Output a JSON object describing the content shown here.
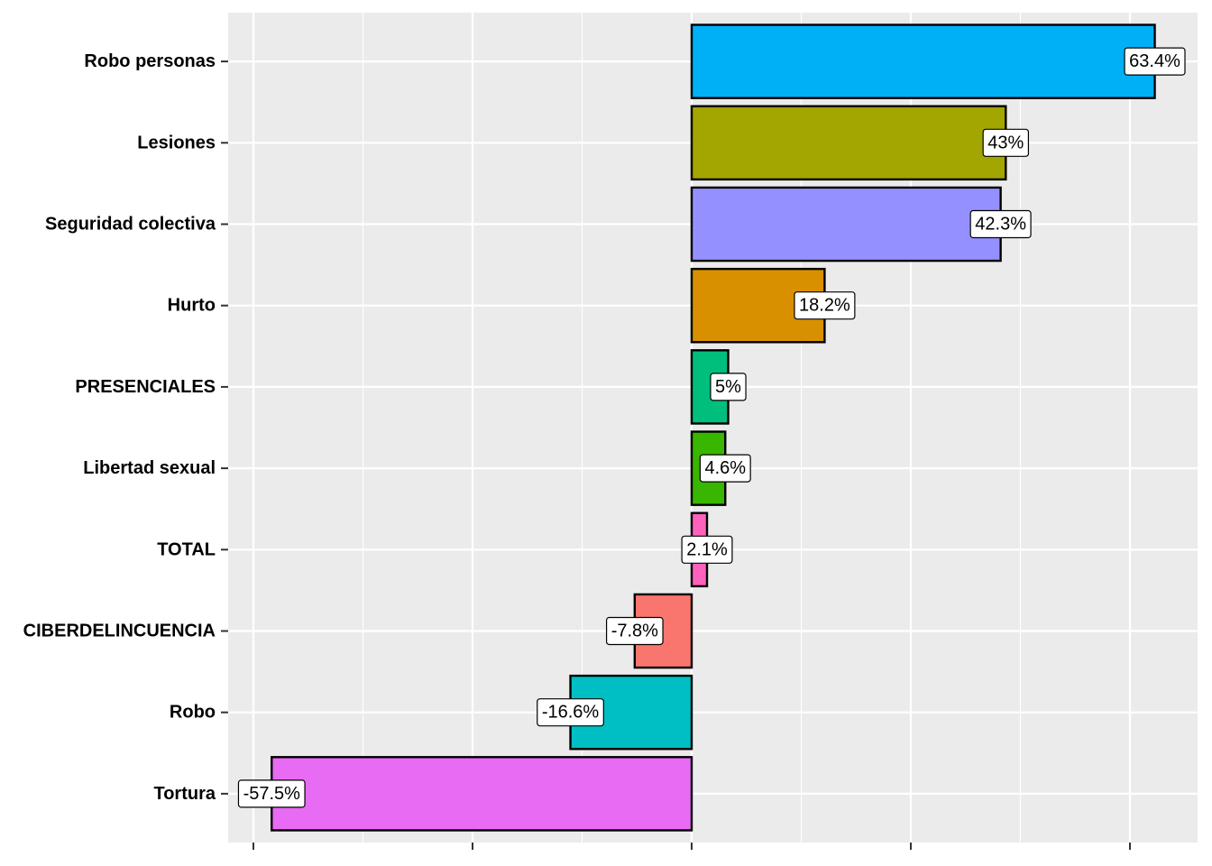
{
  "chart_data": {
    "type": "bar",
    "orientation": "horizontal",
    "title": "",
    "xlabel": "",
    "ylabel": "",
    "xlim": [
      -60,
      65
    ],
    "x_major_breaks": [
      -60,
      -30,
      0,
      30,
      60
    ],
    "x_tick_labels_visible": false,
    "grid": true,
    "legend": "none",
    "categories": [
      "Robo personas",
      "Lesiones",
      "Seguridad colectiva",
      "Hurto",
      "PRESENCIALES",
      "Libertad sexual",
      "TOTAL",
      "CIBERDELINCUENCIA",
      "Robo",
      "Tortura"
    ],
    "values": [
      63.4,
      43,
      42.3,
      18.2,
      5,
      4.6,
      2.1,
      -7.8,
      -16.6,
      -57.5
    ],
    "labels": [
      "63.4%",
      "43%",
      "42.3%",
      "18.2%",
      "5%",
      "4.6%",
      "2.1%",
      "-7.8%",
      "-16.6%",
      "-57.5%"
    ],
    "colors": [
      "#00B0F6",
      "#A3A500",
      "#9590FF",
      "#D89000",
      "#00BF7D",
      "#39B600",
      "#FF62BC",
      "#F8766D",
      "#00BFC4",
      "#E76BF3"
    ]
  }
}
